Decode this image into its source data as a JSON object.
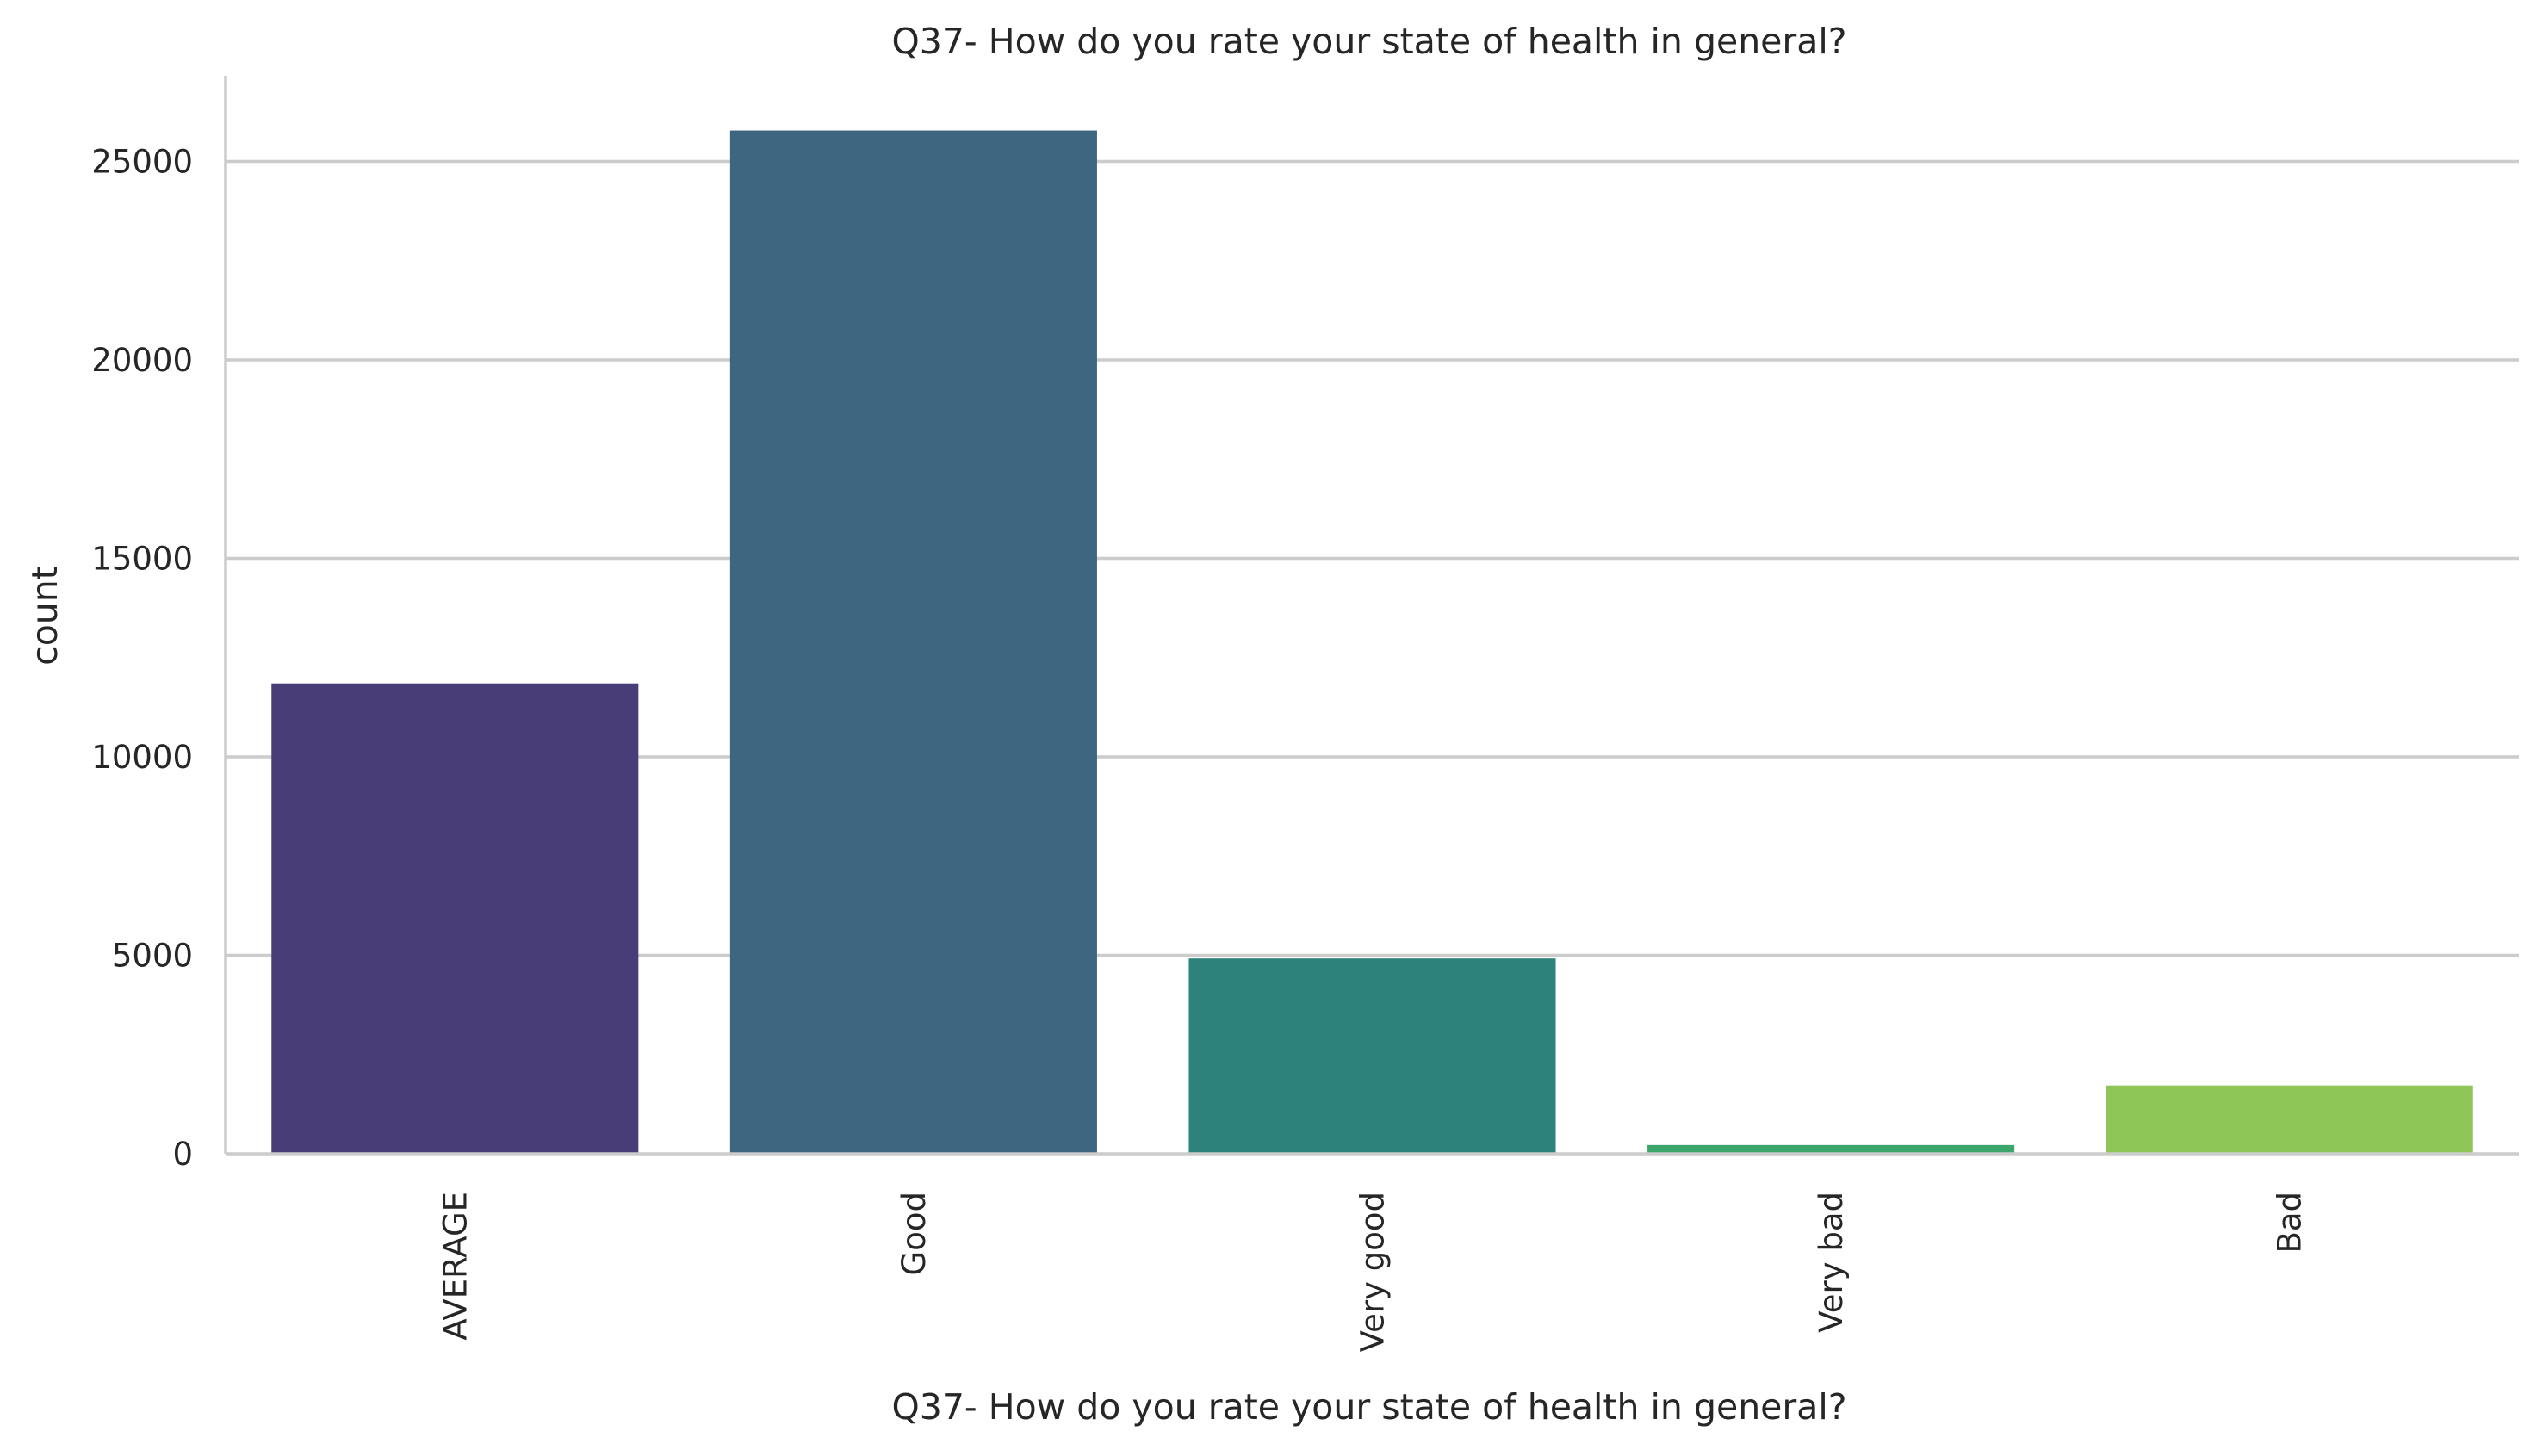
{
  "chart_data": {
    "type": "bar",
    "title": "Q37- How do you rate your state of health in general?",
    "xlabel": "Q37- How do you rate your state of health in general?",
    "ylabel": "count",
    "categories": [
      "AVERAGE",
      "Good",
      "Very good",
      "Very bad",
      "Bad"
    ],
    "values": [
      11850,
      25780,
      4920,
      220,
      1720
    ],
    "colors": [
      "#483d77",
      "#3f6681",
      "#2d827c",
      "#3ca66a",
      "#8dc556"
    ],
    "ylim": [
      0,
      27000
    ],
    "yticks": [
      0,
      5000,
      10000,
      15000,
      20000,
      25000
    ],
    "grid": "horizontal",
    "legend": "none"
  }
}
